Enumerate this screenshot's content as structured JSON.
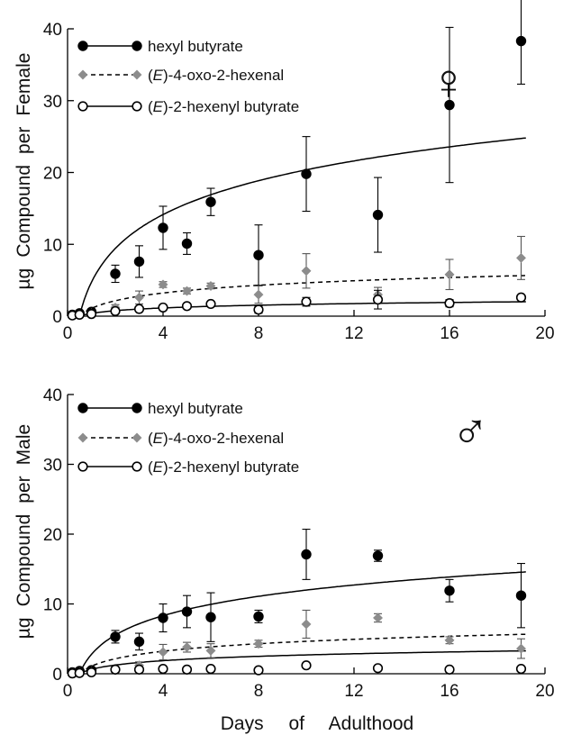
{
  "figure": {
    "xlabel_words": [
      "Days",
      "of",
      "Adulthood"
    ]
  },
  "chart_data": [
    {
      "type": "scatter",
      "panel": "female",
      "symbol": "♀",
      "ylabel_words": [
        "µg",
        "Compound",
        "per",
        "Female"
      ],
      "xlim": [
        0,
        20
      ],
      "ylim": [
        0,
        40
      ],
      "x_ticks": [
        0,
        4,
        8,
        12,
        16,
        20
      ],
      "y_ticks": [
        0,
        10,
        20,
        30,
        40
      ],
      "legend": {
        "placement": "top-left",
        "entries": [
          {
            "prefix": "",
            "italic": "",
            "suffix": "hexyl butyrate",
            "series": 0
          },
          {
            "prefix": "(",
            "italic": "E",
            "suffix": ")-4-oxo-2-hexenal",
            "series": 1
          },
          {
            "prefix": "(",
            "italic": "E",
            "suffix": ")-2-hexenyl butyrate",
            "series": 2
          }
        ]
      },
      "series": [
        {
          "name": "hexyl butyrate",
          "marker": "filled-circle",
          "color": "#000000",
          "line": "solid",
          "x": [
            0.2,
            0.5,
            1,
            2,
            3,
            4,
            5,
            6,
            8,
            10,
            13,
            16,
            19
          ],
          "y": [
            0.2,
            0.4,
            0.6,
            5.9,
            7.6,
            12.3,
            10.1,
            15.9,
            8.5,
            19.8,
            14.1,
            29.4,
            38.3
          ],
          "err": [
            0.2,
            0.3,
            0.4,
            1.2,
            2.2,
            3.0,
            1.5,
            1.9,
            4.2,
            5.2,
            5.2,
            10.8,
            6.0
          ],
          "fit": {
            "a": 6.8,
            "b": 5.8,
            "x0": 0.5
          }
        },
        {
          "name": "(E)-4-oxo-2-hexenal",
          "marker": "filled-diamond",
          "color": "#8c8c8c",
          "line": "dashed",
          "x": [
            0.2,
            0.5,
            1,
            2,
            3,
            4,
            5,
            6,
            8,
            10,
            13,
            16,
            19
          ],
          "y": [
            0.1,
            0.2,
            0.4,
            1.2,
            2.6,
            4.4,
            3.5,
            4.2,
            3.0,
            6.3,
            3.0,
            5.8,
            8.1
          ],
          "err": [
            0.1,
            0.1,
            0.2,
            0.4,
            0.9,
            0.4,
            0.4,
            0.4,
            1.2,
            2.4,
            1.0,
            2.1,
            3.0
          ],
          "fit": {
            "a": 1.55,
            "b": 1.55,
            "x0": 0.5
          }
        },
        {
          "name": "(E)-2-hexenyl butyrate",
          "marker": "open-circle",
          "color": "#000000",
          "line": "solid",
          "x": [
            0.2,
            0.5,
            1,
            2,
            3,
            4,
            5,
            6,
            8,
            10,
            13,
            16,
            19
          ],
          "y": [
            0.1,
            0.2,
            0.3,
            0.7,
            1.0,
            1.2,
            1.4,
            1.7,
            0.9,
            2.0,
            2.3,
            1.8,
            2.6
          ],
          "err": [
            0.05,
            0.1,
            0.1,
            0.2,
            0.3,
            0.3,
            0.3,
            0.3,
            0.5,
            0.6,
            1.3,
            0.5,
            0.3
          ],
          "fit": {
            "a": 0.55,
            "b": 0.55,
            "x0": 0.5
          }
        }
      ]
    },
    {
      "type": "scatter",
      "panel": "male",
      "symbol": "♂",
      "ylabel_words": [
        "µg",
        "Compound",
        "per",
        "Male"
      ],
      "xlim": [
        0,
        20
      ],
      "ylim": [
        0,
        40
      ],
      "x_ticks": [
        0,
        4,
        8,
        12,
        16,
        20
      ],
      "y_ticks": [
        0,
        10,
        20,
        30,
        40
      ],
      "legend": {
        "placement": "top-left",
        "entries": [
          {
            "prefix": "",
            "italic": "",
            "suffix": "hexyl butyrate",
            "series": 0
          },
          {
            "prefix": "(",
            "italic": "E",
            "suffix": ")-4-oxo-2-hexenal",
            "series": 1
          },
          {
            "prefix": "(",
            "italic": "E",
            "suffix": ")-2-hexenyl butyrate",
            "series": 2
          }
        ]
      },
      "series": [
        {
          "name": "hexyl butyrate",
          "marker": "filled-circle",
          "color": "#000000",
          "line": "solid",
          "x": [
            0.2,
            0.5,
            1,
            2,
            3,
            4,
            5,
            6,
            8,
            10,
            13,
            16,
            19
          ],
          "y": [
            0.2,
            0.4,
            0.5,
            5.3,
            4.6,
            8.0,
            8.9,
            8.1,
            8.2,
            17.1,
            16.9,
            11.9,
            11.2
          ],
          "err": [
            0.1,
            0.2,
            0.3,
            0.9,
            1.2,
            2.0,
            2.3,
            3.5,
            0.9,
            3.6,
            0.8,
            1.6,
            4.6
          ],
          "fit": {
            "a": 4.0,
            "b": 3.4,
            "x0": 0.5
          }
        },
        {
          "name": "(E)-4-oxo-2-hexenal",
          "marker": "filled-diamond",
          "color": "#8c8c8c",
          "line": "dashed",
          "x": [
            0.2,
            0.5,
            1,
            2,
            3,
            4,
            5,
            6,
            8,
            10,
            13,
            16,
            19
          ],
          "y": [
            0.1,
            0.2,
            0.3,
            0.5,
            1.2,
            3.1,
            3.8,
            3.3,
            4.3,
            7.1,
            8.0,
            4.8,
            3.6
          ],
          "err": [
            0.05,
            0.1,
            0.1,
            0.3,
            0.5,
            1.1,
            0.7,
            1.0,
            0.5,
            2.0,
            0.6,
            0.5,
            1.4
          ],
          "fit": {
            "a": 1.55,
            "b": 1.45,
            "x0": 0.5
          }
        },
        {
          "name": "(E)-2-hexenyl butyrate",
          "marker": "open-circle",
          "color": "#000000",
          "line": "solid",
          "x": [
            0.2,
            0.5,
            1,
            2,
            3,
            4,
            5,
            6,
            8,
            10,
            13,
            16,
            19
          ],
          "y": [
            0.05,
            0.1,
            0.2,
            0.6,
            0.6,
            0.7,
            0.6,
            0.7,
            0.5,
            1.2,
            0.8,
            0.6,
            0.7
          ],
          "err": [
            0.05,
            0.05,
            0.1,
            0.1,
            0.1,
            0.2,
            0.2,
            0.2,
            0.1,
            0.2,
            0.2,
            0.1,
            0.2
          ],
          "fit": {
            "a": 0.9,
            "b": 0.25,
            "x0": 0.5
          }
        }
      ]
    }
  ]
}
